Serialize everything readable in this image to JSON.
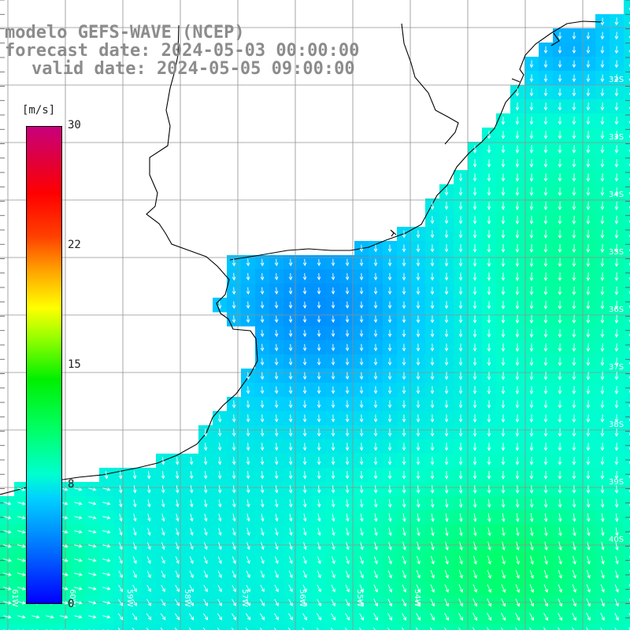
{
  "title": {
    "line1": "modelo GEFS-WAVE (NCEP)",
    "line2": "forecast date: 2024-05-03 00:00:00",
    "line3": "valid date: 2024-05-05 09:00:00"
  },
  "colorbar": {
    "unit": "[m/s]",
    "ticks": [
      "30",
      "22",
      "15",
      "8",
      "0"
    ],
    "tick_values": [
      30,
      22,
      15,
      8,
      0
    ],
    "min": 0,
    "max": 30,
    "colors": [
      "#0000ff",
      "#0080ff",
      "#00d0ff",
      "#00ffd0",
      "#00ff60",
      "#00f000",
      "#9cff00",
      "#ffff00",
      "#ffa000",
      "#ff4000",
      "#ff0000",
      "#e0003c",
      "#c8007c"
    ]
  },
  "map": {
    "land_color": "#ffffff",
    "coastline_color": "#000000",
    "grid_color": "#909090",
    "lat_labels": [
      "32S",
      "33S",
      "34S",
      "35S",
      "36S",
      "37S",
      "38S",
      "39S",
      "40S"
    ],
    "lon_labels": [
      "61W",
      "60W",
      "59W",
      "58W",
      "57W",
      "56W",
      "55W",
      "54W"
    ],
    "wind_direction": "southward, turning southeast near the southern edge"
  }
}
